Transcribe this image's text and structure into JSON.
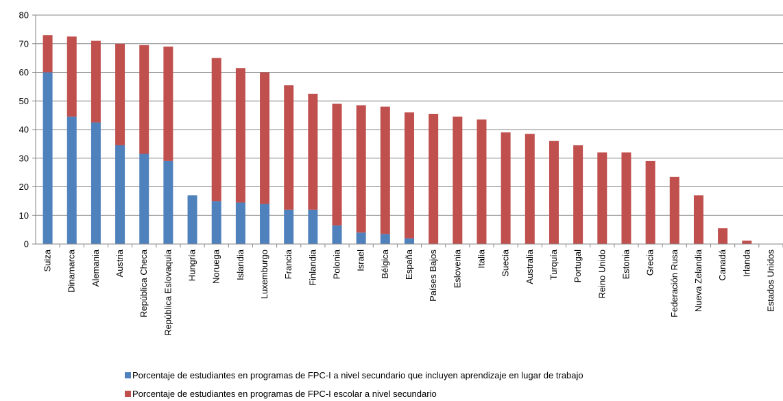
{
  "chart_data": {
    "type": "bar",
    "stacked": true,
    "ylim": [
      0,
      80
    ],
    "yticks": [
      0,
      10,
      20,
      30,
      40,
      50,
      60,
      70,
      80
    ],
    "grid": true,
    "legend_position": "bottom",
    "categories": [
      "Suiza",
      "Dinamarca",
      "Alemania",
      "Austria",
      "República Checa",
      "República Eslovaquía",
      "Hungría",
      "Noruega",
      "Islandia",
      "Luxemburgo",
      "Francia",
      "Finlandia",
      "Polonia",
      "Israel",
      "Bélgica",
      "España",
      "Países Bajos",
      "Eslovenia",
      "Italia",
      "Suecia",
      "Australia",
      "Turquía",
      "Portugal",
      "Reino Unido",
      "Estonia",
      "Grecia",
      "Federación Rusa",
      "Nueva Zelandia",
      "Canadá",
      "Irlanda",
      "Estados Unidos"
    ],
    "series": [
      {
        "name": "Porcentaje de estudiantes en programas de FPC-I a nivel secundario que incluyen aprendizaje en lugar de trabajo",
        "color": "#4F81BD",
        "values": [
          60,
          44.5,
          42.5,
          34.5,
          31.5,
          29,
          17,
          15,
          14.5,
          14,
          12,
          12,
          6.5,
          4,
          3.5,
          2,
          0,
          0,
          0,
          0,
          0,
          0,
          0,
          0,
          0,
          0,
          0,
          0,
          0,
          0,
          0
        ]
      },
      {
        "name": "Porcentaje de estudiantes en programas de FPC-I escolar a nivel secundario",
        "color": "#C0504D",
        "values": [
          13,
          28,
          28.5,
          35.5,
          38,
          40,
          0,
          50,
          47,
          46,
          43.5,
          40.5,
          42.5,
          44.5,
          44.5,
          44,
          45.5,
          44.5,
          43.5,
          39,
          38.5,
          36,
          34.5,
          32,
          32,
          29,
          23.5,
          17,
          5.5,
          1.2,
          0
        ]
      }
    ]
  }
}
